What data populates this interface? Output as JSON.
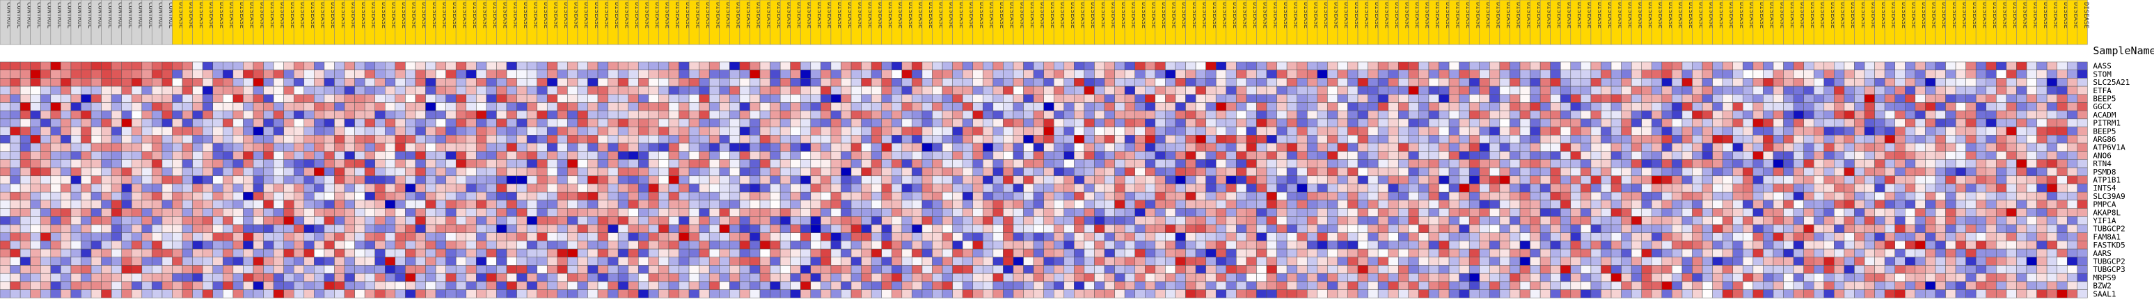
{
  "chart_data": {
    "type": "heatmap",
    "column_header_label": "SampleName",
    "rows": [
      "AASS",
      "STOM",
      "SLC25A21",
      "ETFA",
      "BEEP5",
      "GGCX",
      "ACADM",
      "PITRM1",
      "BEEP5",
      "ARG86",
      "ATP6V1A",
      "ANO6",
      "RTN4",
      "PSMD8",
      "ATP1B1",
      "INTS4",
      "SLC39A9",
      "PMPCA",
      "AKAP8L",
      "YIF1A",
      "TUBGCP2",
      "FAM8A1",
      "FASTKD5",
      "AARS",
      "TUBGCP2",
      "TUBGCP3",
      "MRPS9",
      "BZW2",
      "SAAL1"
    ],
    "columns": {
      "count": 206,
      "group_a_count": 17,
      "group_a_label": "CONTROL",
      "group_b_label": "DISEASE",
      "group_a_color": "#d3d3d3",
      "group_b_color": "#ffd700"
    },
    "value_range": [
      -3,
      3
    ],
    "color_scale": [
      "#0000bb",
      "#ffffff",
      "#cc0000"
    ],
    "values_note": "",
    "values": []
  }
}
